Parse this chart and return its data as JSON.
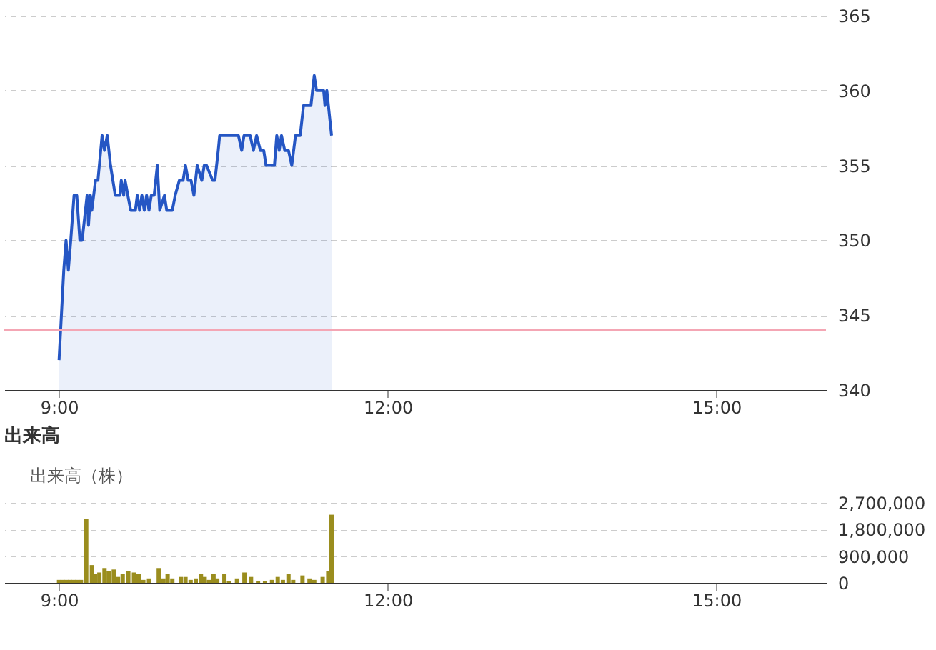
{
  "chart_data": [
    {
      "type": "area",
      "xlim": [
        8.5,
        16
      ],
      "xticks": [
        {
          "value": 9,
          "label": "9:00"
        },
        {
          "value": 12,
          "label": "12:00"
        },
        {
          "value": 15,
          "label": "15:00"
        }
      ],
      "ylim": [
        340,
        365
      ],
      "yticks": [
        340,
        345,
        350,
        355,
        360,
        365
      ],
      "grid": "y",
      "legend": false,
      "ref_lines": [
        {
          "axis": "y",
          "value": 344,
          "color": "#f4a6b4"
        }
      ],
      "series": [
        {
          "color": "#2556c4",
          "x": [
            9.0,
            9.043,
            9.064,
            9.085,
            9.107,
            9.137,
            9.162,
            9.19,
            9.211,
            9.256,
            9.269,
            9.286,
            9.299,
            9.333,
            9.355,
            9.393,
            9.415,
            9.44,
            9.47,
            9.513,
            9.556,
            9.568,
            9.59,
            9.603,
            9.628,
            9.654,
            9.697,
            9.714,
            9.735,
            9.756,
            9.778,
            9.799,
            9.821,
            9.842,
            9.868,
            9.897,
            9.919,
            9.962,
            9.983,
            10.034,
            10.06,
            10.098,
            10.132,
            10.154,
            10.179,
            10.205,
            10.231,
            10.261,
            10.303,
            10.325,
            10.346,
            10.402,
            10.423,
            10.453,
            10.466,
            10.509,
            10.637,
            10.667,
            10.688,
            10.744,
            10.774,
            10.803,
            10.838,
            10.868,
            10.889,
            10.966,
            10.987,
            11.009,
            11.03,
            11.06,
            11.094,
            11.124,
            11.158,
            11.201,
            11.231,
            11.299,
            11.329,
            11.35,
            11.415,
            11.427,
            11.444,
            11.487
          ],
          "values": [
            342,
            348,
            350,
            348,
            350,
            353,
            353,
            350,
            350,
            353,
            351,
            353,
            352,
            354,
            354,
            357,
            356,
            357,
            355,
            353,
            353,
            354,
            353,
            354,
            353,
            352,
            352,
            353,
            352,
            353,
            352,
            353,
            352,
            353,
            353,
            355,
            352,
            353,
            352,
            352,
            353,
            354,
            354,
            355,
            354,
            354,
            353,
            355,
            354,
            355,
            355,
            354,
            354,
            356,
            357,
            357,
            357,
            356,
            357,
            357,
            356,
            357,
            356,
            356,
            355,
            355,
            357,
            356,
            357,
            356,
            356,
            355,
            357,
            357,
            359,
            359,
            361,
            360,
            360,
            359,
            360,
            357
          ]
        }
      ]
    },
    {
      "type": "bar",
      "title": "出来高",
      "xlim": [
        8.5,
        16
      ],
      "xticks": [
        {
          "value": 9,
          "label": "9:00"
        },
        {
          "value": 12,
          "label": "12:00"
        },
        {
          "value": 15,
          "label": "15:00"
        }
      ],
      "ylim": [
        0,
        2700000
      ],
      "yticks": [
        {
          "value": 0,
          "label": "0"
        },
        {
          "value": 900000,
          "label": "900,000"
        },
        {
          "value": 1800000,
          "label": "1,800,000"
        },
        {
          "value": 2700000,
          "label": "2,700,000"
        }
      ],
      "grid": "y",
      "legend": "top left",
      "series": [
        {
          "name": "出来高（株）",
          "color": "#9a8d1e",
          "x": [
            9.0,
            9.033,
            9.067,
            9.1,
            9.133,
            9.167,
            9.2,
            9.248,
            9.3,
            9.329,
            9.368,
            9.415,
            9.453,
            9.5,
            9.538,
            9.581,
            9.632,
            9.684,
            9.726,
            9.769,
            9.821,
            9.91,
            9.953,
            9.991,
            10.034,
            10.111,
            10.154,
            10.201,
            10.248,
            10.295,
            10.329,
            10.368,
            10.41,
            10.444,
            10.509,
            10.551,
            10.624,
            10.692,
            10.752,
            10.816,
            10.88,
            10.944,
            10.996,
            11.043,
            11.094,
            11.137,
            11.222,
            11.286,
            11.329,
            11.406,
            11.457,
            11.487
          ],
          "values": [
            100000,
            100000,
            100000,
            100000,
            100000,
            100000,
            100000,
            2150000,
            600000,
            300000,
            350000,
            500000,
            400000,
            450000,
            200000,
            300000,
            400000,
            350000,
            300000,
            100000,
            150000,
            500000,
            150000,
            300000,
            150000,
            200000,
            200000,
            100000,
            150000,
            300000,
            200000,
            100000,
            300000,
            150000,
            300000,
            50000,
            150000,
            350000,
            200000,
            50000,
            50000,
            100000,
            200000,
            100000,
            300000,
            100000,
            250000,
            150000,
            100000,
            200000,
            400000,
            2300000
          ]
        }
      ]
    }
  ]
}
